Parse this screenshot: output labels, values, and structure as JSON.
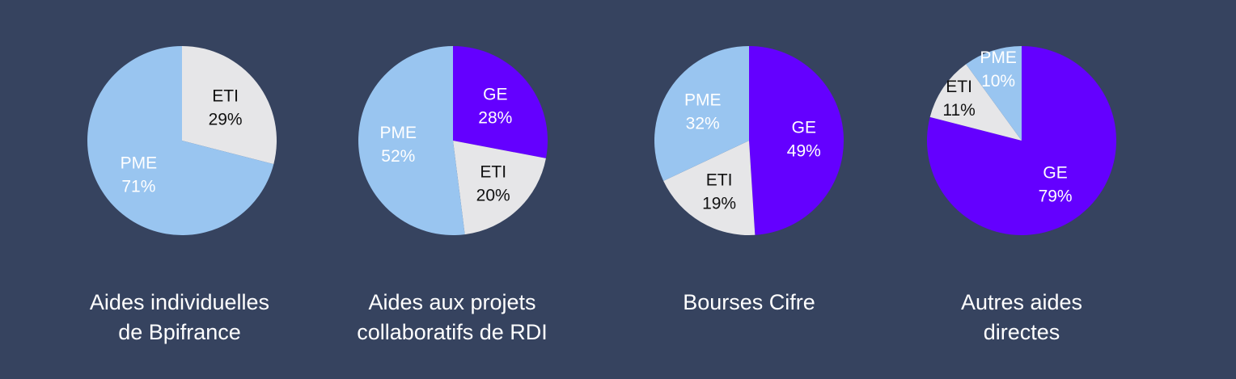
{
  "colors": {
    "background": "#36435f",
    "PME": "#99c5f0",
    "ETI": "#e6e6e8",
    "GE": "#6400ff",
    "label_on_dark": "#ffffff",
    "label_on_light": "#111111"
  },
  "chart_data": [
    {
      "type": "pie",
      "caption": "Aides individuelles\nde Bpifrance",
      "slices": [
        {
          "label": "ETI",
          "value": 29,
          "display": "29%"
        },
        {
          "label": "PME",
          "value": 71,
          "display": "71%"
        }
      ]
    },
    {
      "type": "pie",
      "caption": "Aides aux projets\ncollaboratifs de RDI",
      "slices": [
        {
          "label": "GE",
          "value": 28,
          "display": "28%"
        },
        {
          "label": "ETI",
          "value": 20,
          "display": "20%"
        },
        {
          "label": "PME",
          "value": 52,
          "display": "52%"
        }
      ]
    },
    {
      "type": "pie",
      "caption": "Bourses Cifre",
      "slices": [
        {
          "label": "GE",
          "value": 49,
          "display": "49%"
        },
        {
          "label": "ETI",
          "value": 19,
          "display": "19%"
        },
        {
          "label": "PME",
          "value": 32,
          "display": "32%"
        }
      ]
    },
    {
      "type": "pie",
      "caption": "Autres aides\ndirectes",
      "slices": [
        {
          "label": "GE",
          "value": 79,
          "display": "79%"
        },
        {
          "label": "ETI",
          "value": 11,
          "display": "11%"
        },
        {
          "label": "PME",
          "value": 10,
          "display": "10%"
        }
      ]
    }
  ]
}
